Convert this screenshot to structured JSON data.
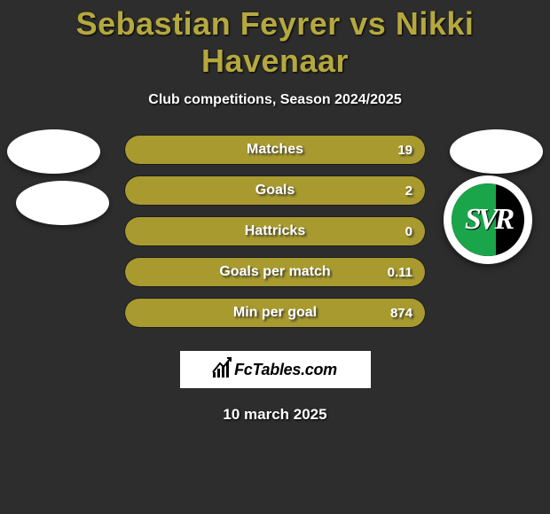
{
  "title": "Sebastian Feyrer vs Nikki Havenaar",
  "subtitle": "Club competitions, Season 2024/2025",
  "date": "10 march 2025",
  "colors": {
    "title_color": "#b5a83d",
    "bar_fill": "#a89a2e",
    "background": "#2d2d2d",
    "text": "#ffffff"
  },
  "brand": {
    "text": "FcTables.com"
  },
  "club_logo": {
    "letters": "SVR",
    "green": "#1aa54a",
    "bg": "#000000",
    "ring": "#ffffff"
  },
  "stats": [
    {
      "label": "Matches",
      "value": "19",
      "fill_pct": 100
    },
    {
      "label": "Goals",
      "value": "2",
      "fill_pct": 100
    },
    {
      "label": "Hattricks",
      "value": "0",
      "fill_pct": 100
    },
    {
      "label": "Goals per match",
      "value": "0.11",
      "fill_pct": 100
    },
    {
      "label": "Min per goal",
      "value": "874",
      "fill_pct": 100
    }
  ]
}
